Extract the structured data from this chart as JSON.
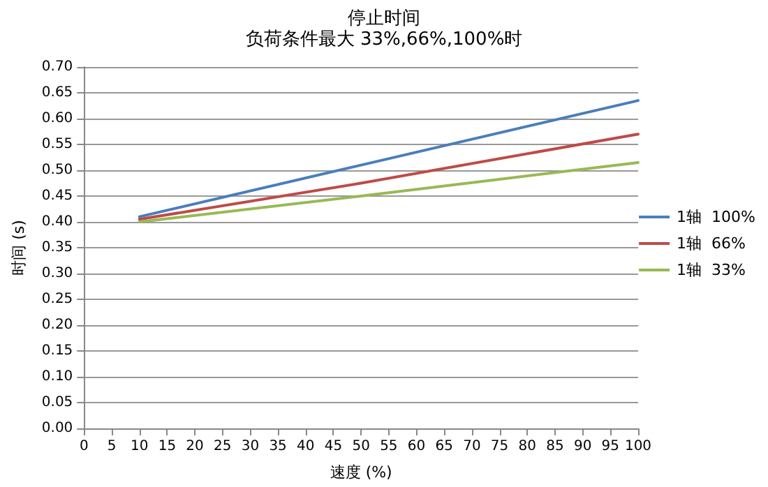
{
  "chart_data": {
    "type": "line",
    "title": "停止时间",
    "subtitle": "负荷条件最大 33%,66%,100%时",
    "xlabel": "速度 (%)",
    "ylabel": "时间 (s)",
    "x": [
      10,
      50,
      100
    ],
    "series": [
      {
        "name": "1轴  100%",
        "color": "#4a7ebb",
        "values": [
          0.41,
          0.51,
          0.635
        ]
      },
      {
        "name": "1轴  66%",
        "color": "#be4b48",
        "values": [
          0.405,
          0.475,
          0.57
        ]
      },
      {
        "name": "1轴  33%",
        "color": "#98b954",
        "values": [
          0.4,
          0.45,
          0.515
        ]
      }
    ],
    "xlim": [
      0,
      100
    ],
    "xticks": [
      0,
      5,
      10,
      15,
      20,
      25,
      30,
      35,
      40,
      45,
      50,
      55,
      60,
      65,
      70,
      75,
      80,
      85,
      90,
      95,
      100
    ],
    "ylim": [
      0,
      0.7
    ],
    "yticks": [
      {
        "value": 0,
        "label": "0.00"
      },
      {
        "value": 0.05,
        "label": "0.05"
      },
      {
        "value": 0.1,
        "label": "0.10"
      },
      {
        "value": 0.15,
        "label": "0.15"
      },
      {
        "value": 0.2,
        "label": "0.20"
      },
      {
        "value": 0.25,
        "label": "0.25"
      },
      {
        "value": 0.3,
        "label": "0.30"
      },
      {
        "value": 0.35,
        "label": "0.35"
      },
      {
        "value": 0.4,
        "label": "0.40"
      },
      {
        "value": 0.45,
        "label": "0.45"
      },
      {
        "value": 0.5,
        "label": "0.50"
      },
      {
        "value": 0.55,
        "label": "0.55"
      },
      {
        "value": 0.6,
        "label": "0.60"
      },
      {
        "value": 0.65,
        "label": "0.65"
      },
      {
        "value": 0.7,
        "label": "0.70"
      }
    ],
    "grid": "y",
    "legend": "right",
    "marker": "none",
    "line_style": "solid"
  }
}
